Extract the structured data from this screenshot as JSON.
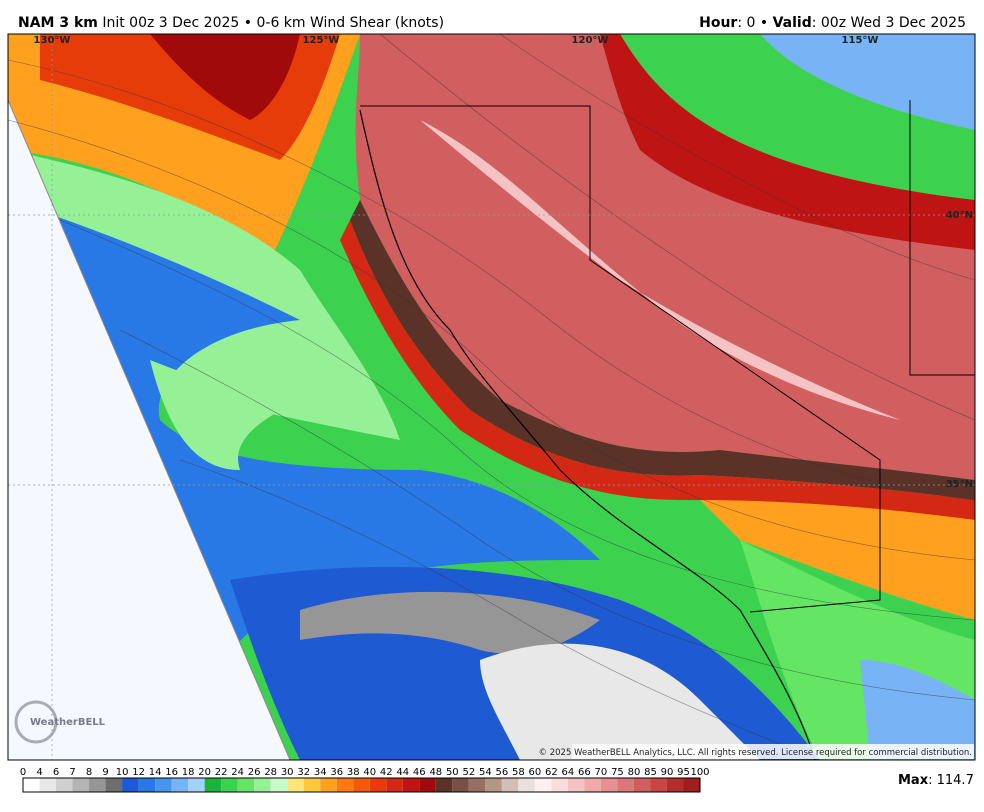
{
  "header": {
    "model": "NAM 3 km",
    "run": "Init 00z 3 Dec 2025",
    "separator": "•",
    "field": "0-6 km Wind Shear (knots)",
    "hour_label": "Hour",
    "hour_value": ": 0",
    "separator2": "•",
    "valid_label": "Valid",
    "valid_value": ": 00z Wed 3 Dec 2025"
  },
  "map": {
    "lon_labels": [
      "130°W",
      "125°W",
      "120°W",
      "115°W"
    ],
    "lat_labels": [
      "40°N",
      "35°N"
    ],
    "logo": "WeatherBELL",
    "copyright": "© 2025 WeatherBELL Analytics, LLC. All rights reserved. License required for commercial distribution."
  },
  "colorbar": {
    "ticks": [
      0,
      4,
      6,
      7,
      8,
      9,
      10,
      12,
      14,
      16,
      18,
      20,
      22,
      24,
      26,
      28,
      30,
      32,
      34,
      36,
      38,
      40,
      42,
      44,
      46,
      48,
      50,
      52,
      54,
      56,
      58,
      60,
      62,
      64,
      66,
      70,
      75,
      80,
      85,
      90,
      95,
      100
    ],
    "colors": [
      "#ffffff",
      "#e8e8e8",
      "#d0d0d0",
      "#b4b4b4",
      "#969696",
      "#6e6e6e",
      "#1e5ad2",
      "#2878e6",
      "#4696f0",
      "#78b4f5",
      "#a0d2fa",
      "#1eb43c",
      "#3cd250",
      "#64e664",
      "#96f096",
      "#c8fac8",
      "#ffe678",
      "#ffc83c",
      "#ffa01e",
      "#ff7814",
      "#f05a0a",
      "#e63c0a",
      "#d22814",
      "#be1414",
      "#a00a0a",
      "#5a3228",
      "#785046",
      "#967064",
      "#b49686",
      "#d2beb4",
      "#ebe1dc",
      "#fff0f0",
      "#fadcdc",
      "#f5c3c3",
      "#f0aaaa",
      "#e69191",
      "#dc7878",
      "#d25f5f",
      "#c84646",
      "#b42d2d",
      "#a01e1e"
    ]
  },
  "max": {
    "label": "Max",
    "value": ": 114.7"
  }
}
